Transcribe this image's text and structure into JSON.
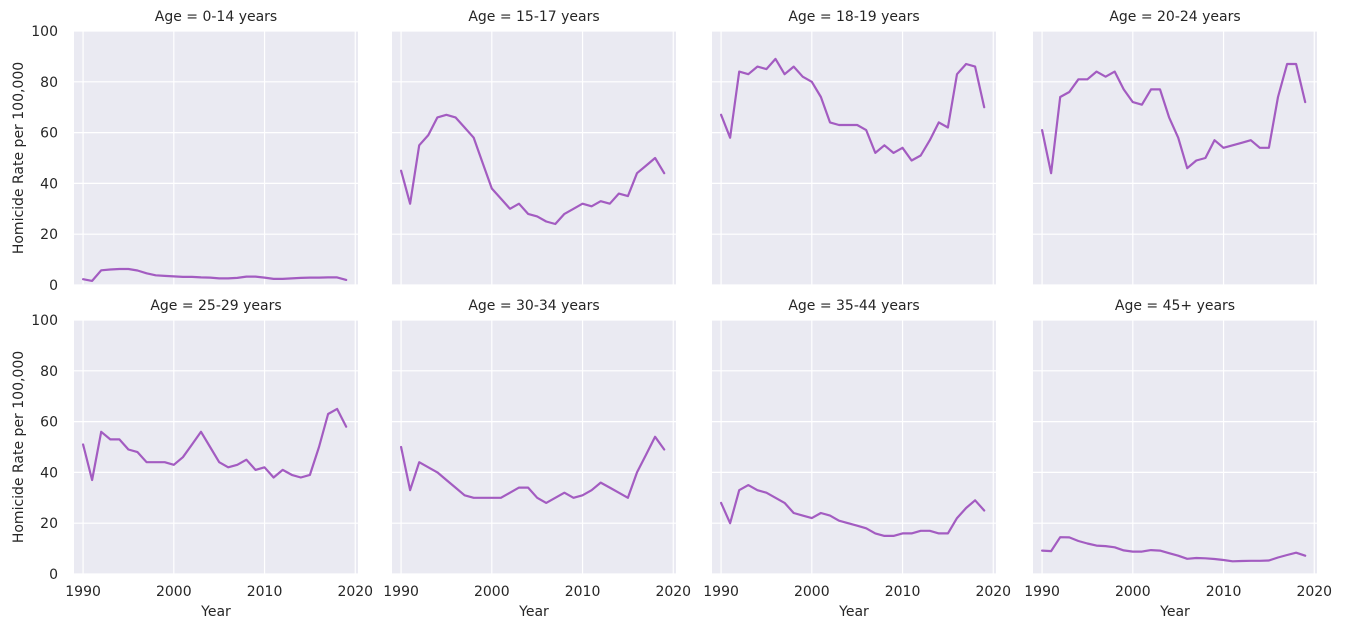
{
  "chart_data": {
    "type": "line",
    "layout": "facet-grid",
    "ylabel": "Homicide Rate per 100,000",
    "xlabel": "Year",
    "xlim": [
      1989,
      2020.3
    ],
    "ylim": [
      0,
      100
    ],
    "xticks": [
      1990,
      2000,
      2010,
      2020
    ],
    "yticks": [
      0,
      20,
      40,
      60,
      80,
      100
    ],
    "grid": true,
    "line_color": "#a35cc1",
    "background_color": "#eaeaf2",
    "x": [
      1990,
      1991,
      1992,
      1993,
      1994,
      1995,
      1996,
      1997,
      1998,
      1999,
      2000,
      2001,
      2002,
      2003,
      2004,
      2005,
      2006,
      2007,
      2008,
      2009,
      2010,
      2011,
      2012,
      2013,
      2014,
      2015,
      2016,
      2017,
      2018,
      2019
    ],
    "panels": [
      {
        "title": "Age = 0-14 years",
        "values": [
          2.3,
          1.6,
          5.8,
          6.1,
          6.3,
          6.3,
          5.7,
          4.6,
          3.8,
          3.6,
          3.4,
          3.2,
          3.2,
          3.0,
          2.9,
          2.6,
          2.6,
          2.8,
          3.3,
          3.3,
          2.9,
          2.4,
          2.4,
          2.6,
          2.8,
          2.9,
          2.9,
          3.0,
          3.0,
          2.0
        ]
      },
      {
        "title": "Age = 15-17 years",
        "values": [
          45,
          32,
          55,
          59,
          66,
          67,
          66,
          62,
          58,
          48,
          38,
          34,
          30,
          32,
          28,
          27,
          25,
          24,
          28,
          30,
          32,
          31,
          33,
          32,
          36,
          35,
          44,
          47,
          50,
          44
        ]
      },
      {
        "title": "Age = 18-19 years",
        "values": [
          67,
          58,
          84,
          83,
          86,
          85,
          89,
          83,
          86,
          82,
          80,
          74,
          64,
          63,
          63,
          63,
          61,
          52,
          55,
          52,
          54,
          49,
          51,
          57,
          64,
          62,
          83,
          87,
          86,
          70
        ]
      },
      {
        "title": "Age = 20-24 years",
        "values": [
          61,
          44,
          74,
          76,
          81,
          81,
          84,
          82,
          84,
          77,
          72,
          71,
          77,
          77,
          66,
          58,
          46,
          49,
          50,
          57,
          54,
          55,
          56,
          57,
          54,
          54,
          74,
          87,
          87,
          72
        ]
      },
      {
        "title": "Age = 25-29 years",
        "values": [
          51,
          37,
          56,
          53,
          53,
          49,
          48,
          44,
          44,
          44,
          43,
          46,
          51,
          56,
          50,
          44,
          42,
          43,
          45,
          41,
          42,
          38,
          41,
          39,
          38,
          39,
          50,
          63,
          65,
          58
        ]
      },
      {
        "title": "Age = 30-34 years",
        "values": [
          50,
          33,
          44,
          42,
          40,
          37,
          34,
          31,
          30,
          30,
          30,
          30,
          32,
          34,
          34,
          30,
          28,
          30,
          32,
          30,
          31,
          33,
          36,
          34,
          32,
          30,
          40,
          47,
          54,
          49
        ]
      },
      {
        "title": "Age = 35-44 years",
        "values": [
          28,
          20,
          33,
          35,
          33,
          32,
          30,
          28,
          24,
          23,
          22,
          24,
          23,
          21,
          20,
          19,
          18,
          16,
          15,
          15,
          16,
          16,
          17,
          17,
          16,
          16,
          22,
          26,
          29,
          25
        ]
      },
      {
        "title": "Age = 45+ years",
        "values": [
          9.2,
          9.0,
          14.5,
          14.4,
          13.0,
          12.0,
          11.2,
          11.0,
          10.5,
          9.3,
          8.8,
          8.8,
          9.4,
          9.2,
          8.2,
          7.2,
          6.0,
          6.3,
          6.2,
          5.9,
          5.5,
          5.0,
          5.1,
          5.2,
          5.2,
          5.3,
          6.5,
          7.5,
          8.4,
          7.2
        ]
      }
    ]
  }
}
